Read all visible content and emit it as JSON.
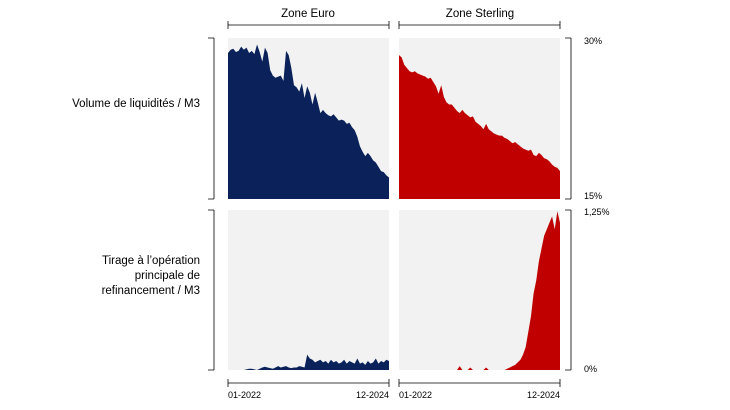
{
  "chart_data": {
    "type": "area",
    "columns": [
      "Zone Euro",
      "Zone Sterling"
    ],
    "rows": [
      {
        "label": "Volume de liquidités / M3",
        "ylim": [
          15,
          30
        ],
        "ymin_label": "15%",
        "ymax_label": "30%",
        "series": [
          {
            "name": "Zone Euro",
            "color": "#0a2159",
            "values": [
              28.6,
              28.9,
              29.0,
              28.7,
              28.8,
              29.2,
              28.9,
              29.1,
              28.6,
              28.8,
              28.5,
              29.4,
              28.7,
              27.8,
              29.1,
              28.6,
              27.0,
              26.5,
              26.3,
              26.4,
              26.5,
              26.0,
              28.8,
              28.4,
              27.2,
              25.6,
              25.4,
              25.0,
              25.8,
              24.4,
              25.5,
              24.9,
              23.8,
              24.9,
              24.0,
              23.0,
              23.3,
              23.0,
              22.8,
              22.7,
              22.9,
              22.6,
              22.3,
              22.4,
              22.3,
              22.0,
              22.1,
              21.7,
              21.4,
              20.8,
              19.9,
              19.4,
              19.0,
              19.3,
              19.0,
              18.6,
              18.4,
              18.0,
              17.6,
              17.5,
              17.2,
              17.0
            ]
          },
          {
            "name": "Zone Sterling",
            "color": "#c00000",
            "values": [
              28.4,
              28.2,
              27.5,
              27.2,
              26.9,
              26.8,
              26.9,
              26.7,
              26.6,
              26.5,
              26.4,
              26.2,
              26.3,
              25.9,
              25.5,
              24.8,
              25.6,
              24.5,
              24.0,
              23.8,
              23.8,
              23.5,
              23.2,
              23.0,
              23.3,
              23.0,
              22.8,
              22.6,
              22.7,
              22.2,
              22.0,
              21.8,
              21.5,
              22.0,
              21.5,
              21.3,
              21.1,
              21.0,
              20.9,
              20.9,
              20.7,
              20.6,
              20.4,
              20.2,
              20.3,
              20.1,
              19.9,
              19.7,
              19.6,
              19.5,
              19.6,
              19.1,
              19.0,
              19.3,
              19.1,
              18.8,
              18.7,
              18.5,
              18.2,
              18.0,
              17.9,
              17.6
            ]
          }
        ]
      },
      {
        "label": "Tirage à l’opération principale de refinancement / M3",
        "ylim": [
          0,
          1.25
        ],
        "ymin_label": "0%",
        "ymax_label": "1,25%",
        "series": [
          {
            "name": "Zone Euro",
            "color": "#0a2159",
            "values": [
              0,
              0,
              0,
              0,
              0,
              0,
              0,
              0.005,
              0.01,
              0.01,
              0.005,
              0,
              0.01,
              0.02,
              0.025,
              0.02,
              0.015,
              0.01,
              0.02,
              0.03,
              0.02,
              0.025,
              0.03,
              0.02,
              0.015,
              0.02,
              0.02,
              0.03,
              0.025,
              0.02,
              0.12,
              0.09,
              0.08,
              0.06,
              0.07,
              0.08,
              0.06,
              0.07,
              0.05,
              0.08,
              0.06,
              0.07,
              0.05,
              0.06,
              0.08,
              0.05,
              0.07,
              0.06,
              0.05,
              0.09,
              0.05,
              0.06,
              0.04,
              0.07,
              0.05,
              0.06,
              0.09,
              0.05,
              0.07,
              0.06,
              0.08,
              0.07
            ]
          },
          {
            "name": "Zone Sterling",
            "color": "#c00000",
            "values": [
              0,
              0,
              0,
              0,
              0,
              0,
              0,
              0,
              0,
              0,
              0,
              0,
              0,
              0,
              0,
              0,
              0,
              0,
              0,
              0,
              0,
              0,
              0,
              0.03,
              0,
              0,
              0,
              0.02,
              0,
              0,
              0,
              0,
              0,
              0.02,
              0,
              0,
              0,
              0,
              0,
              0,
              0,
              0.01,
              0.02,
              0.03,
              0.04,
              0.06,
              0.08,
              0.12,
              0.18,
              0.3,
              0.42,
              0.6,
              0.7,
              0.85,
              0.95,
              1.05,
              1.1,
              1.15,
              1.2,
              1.1,
              1.24,
              1.15
            ]
          }
        ]
      }
    ],
    "x_start_label": "01-2022",
    "x_end_label": "12-2024"
  }
}
